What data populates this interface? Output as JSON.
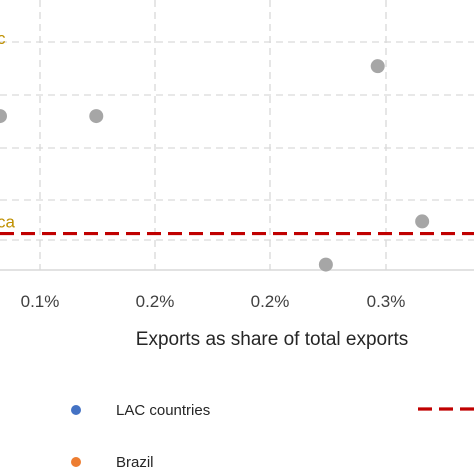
{
  "chart_data": {
    "type": "scatter",
    "xlabel": "Exports as share of total exports",
    "x_ticks": [
      "0.1%",
      "0.2%",
      "0.2%",
      "0.3%"
    ],
    "xlim": [
      0.00035,
      0.00355
    ],
    "ylim": [
      0,
      1
    ],
    "grid": true,
    "series": [
      {
        "name": "",
        "color": "#a6a6a6",
        "points": [
          {
            "x": 0.00035,
            "y": 0.57
          },
          {
            "x": 0.001,
            "y": 0.57
          },
          {
            "x": 0.0029,
            "y": 0.755
          },
          {
            "x": 0.00255,
            "y": 0.02
          },
          {
            "x": 0.0032,
            "y": 0.18
          }
        ]
      }
    ],
    "reference_line": {
      "y": 0.135,
      "color": "#c00000",
      "style": "dashed"
    },
    "annotations": [
      {
        "text": "c",
        "x": 0.00035,
        "y": 0.86
      },
      {
        "text": "ca",
        "x": 0.00035,
        "y": 0.18
      }
    ],
    "legend": {
      "placement": "bottom",
      "entries": [
        {
          "label": "LAC countries",
          "color": "#4472c4",
          "marker": "dot"
        },
        {
          "label": "Brazil",
          "color": "#ed7d31",
          "marker": "dot"
        },
        {
          "label": "",
          "color": "#c00000",
          "marker": "dashed-line"
        }
      ]
    }
  }
}
